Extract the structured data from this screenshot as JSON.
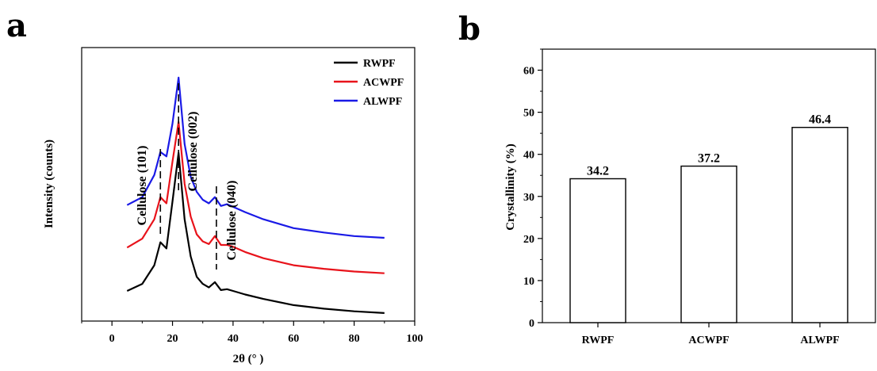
{
  "panels": {
    "a": "a",
    "b": "b"
  },
  "chart_data": [
    {
      "type": "line",
      "panel": "a",
      "xlabel": "2θ (° )",
      "ylabel": "Intensity (counts)",
      "xlim": [
        -10,
        100
      ],
      "xticks": [
        "0",
        "20",
        "40",
        "60",
        "80",
        "100"
      ],
      "legend": {
        "position": "top-right"
      },
      "series": [
        {
          "name": "RWPF",
          "color": "#000000",
          "x": [
            5,
            10,
            14,
            16,
            18,
            20,
            22,
            24,
            26,
            28,
            30,
            32,
            34,
            36,
            38,
            40,
            44,
            50,
            60,
            70,
            80,
            90
          ],
          "y": [
            3.4,
            4.2,
            6.3,
            8.9,
            8.2,
            13.5,
            19.0,
            11.5,
            7.3,
            5.0,
            4.2,
            3.8,
            4.4,
            3.5,
            3.6,
            3.4,
            3.0,
            2.5,
            1.8,
            1.4,
            1.1,
            0.9
          ]
        },
        {
          "name": "ACWPF",
          "color": "#e8131b",
          "x": [
            5,
            10,
            14,
            16,
            18,
            20,
            22,
            24,
            26,
            28,
            30,
            32,
            34,
            36,
            38,
            40,
            44,
            50,
            60,
            70,
            80,
            90
          ],
          "y": [
            8.3,
            9.3,
            11.5,
            14.0,
            13.3,
            18.0,
            22.5,
            15.5,
            11.8,
            9.8,
            9.0,
            8.7,
            9.6,
            8.6,
            8.6,
            8.4,
            7.8,
            7.1,
            6.3,
            5.9,
            5.6,
            5.4
          ]
        },
        {
          "name": "ALWPF",
          "color": "#1a1ae6",
          "x": [
            5,
            10,
            14,
            16,
            18,
            20,
            22,
            24,
            26,
            28,
            30,
            32,
            34,
            36,
            38,
            40,
            44,
            50,
            60,
            70,
            80,
            90
          ],
          "y": [
            13.1,
            14.0,
            16.5,
            19.1,
            18.6,
            22.3,
            27.5,
            20.0,
            16.3,
            14.6,
            13.7,
            13.3,
            14.0,
            13.0,
            13.2,
            12.9,
            12.3,
            11.5,
            10.5,
            10.0,
            9.6,
            9.4
          ]
        }
      ],
      "annotations": [
        {
          "label": "Cellulose (101)",
          "x": 16
        },
        {
          "label": "Cellulose (002)",
          "x": 22
        },
        {
          "label": "Cellulose (040)",
          "x": 34.5
        }
      ],
      "peak_markers": [
        16,
        22,
        34.5
      ]
    },
    {
      "type": "bar",
      "panel": "b",
      "ylabel": "Crystallinity (%)",
      "ylim": [
        0,
        65
      ],
      "yticks": [
        "0",
        "10",
        "20",
        "30",
        "40",
        "50",
        "60"
      ],
      "categories": [
        "RWPF",
        "ACWPF",
        "ALWPF"
      ],
      "values": [
        34.2,
        37.2,
        46.4
      ],
      "value_labels": [
        "34.2",
        "37.2",
        "46.4"
      ]
    }
  ]
}
